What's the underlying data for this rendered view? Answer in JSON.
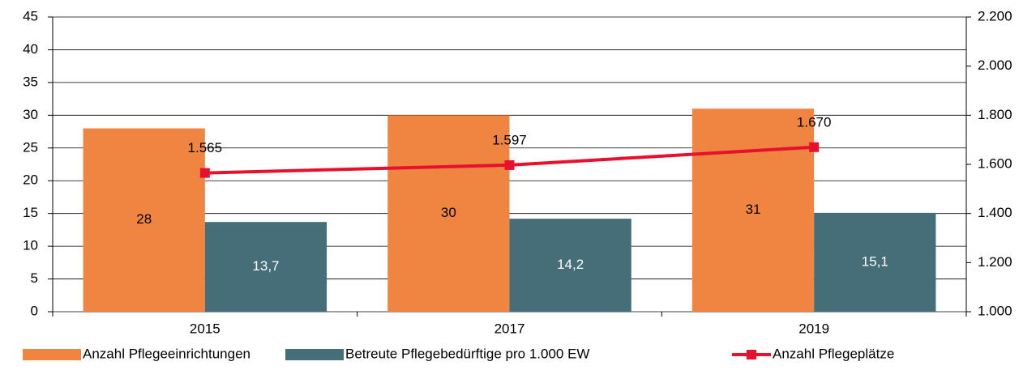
{
  "chart_data": {
    "type": "bar",
    "categories": [
      "2015",
      "2017",
      "2019"
    ],
    "series": [
      {
        "name": "Anzahl Pflegeeinrichtungen",
        "color": "#ef8540",
        "values": [
          28,
          30,
          31
        ]
      },
      {
        "name": "Betreute Pflegebedürftige pro 1.000 EW",
        "color": "#466e78",
        "values": [
          13.7,
          14.2,
          15.1
        ],
        "value_labels": [
          "13,7",
          "14,2",
          "15,1"
        ]
      },
      {
        "name": "Anzahl Pflegeplätze",
        "color": "#e8112d",
        "type": "line",
        "axis": "y2",
        "values": [
          1565,
          1597,
          1670
        ],
        "value_labels": [
          "1.565",
          "1.597",
          "1.670"
        ]
      }
    ],
    "ylim": [
      0,
      45
    ],
    "yticks": [
      0,
      5,
      10,
      15,
      20,
      25,
      30,
      35,
      40,
      45
    ],
    "y2lim": [
      1000,
      2200
    ],
    "y2ticks": [
      {
        "value": 1000,
        "label": "1.000"
      },
      {
        "value": 1200,
        "label": "1.200"
      },
      {
        "value": 1400,
        "label": "1.400"
      },
      {
        "value": 1600,
        "label": "1.600"
      },
      {
        "value": 1800,
        "label": "1.800"
      },
      {
        "value": 2000,
        "label": "2.000"
      },
      {
        "value": 2200,
        "label": "2.200"
      }
    ],
    "grid": true,
    "legend": "bottom"
  }
}
